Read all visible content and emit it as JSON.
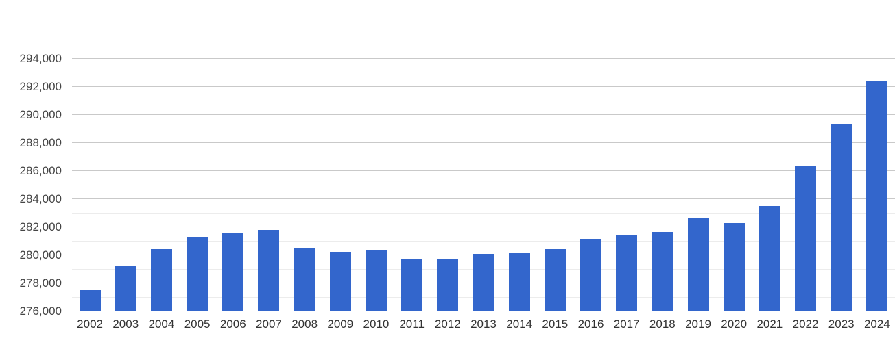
{
  "chart_data": {
    "type": "bar",
    "title": "",
    "xlabel": "",
    "ylabel": "",
    "categories": [
      "2002",
      "2003",
      "2004",
      "2005",
      "2006",
      "2007",
      "2008",
      "2009",
      "2010",
      "2011",
      "2012",
      "2013",
      "2014",
      "2015",
      "2016",
      "2017",
      "2018",
      "2019",
      "2020",
      "2021",
      "2022",
      "2023",
      "2024"
    ],
    "values": [
      277500,
      279250,
      280450,
      281300,
      281600,
      281800,
      280550,
      280250,
      280400,
      279750,
      279700,
      280100,
      280200,
      280450,
      281150,
      281400,
      281650,
      282650,
      282300,
      283500,
      286400,
      289350,
      292450
    ],
    "ylim": [
      276000,
      294000
    ],
    "y_major_tick_step": 2000,
    "y_minor_tick_step": 1000,
    "y_tick_labels": [
      "276,000",
      "278,000",
      "280,000",
      "282,000",
      "284,000",
      "286,000",
      "288,000",
      "290,000",
      "292,000",
      "294,000"
    ],
    "grid": true,
    "legend": "none",
    "bar_color": "#3366cc"
  },
  "colors": {
    "bar": "#3366cc",
    "major_gridline": "#c9c9c9",
    "minor_gridline": "#ececec",
    "y_label_text": "#444444",
    "x_label_text": "#333333",
    "background": "#ffffff"
  }
}
